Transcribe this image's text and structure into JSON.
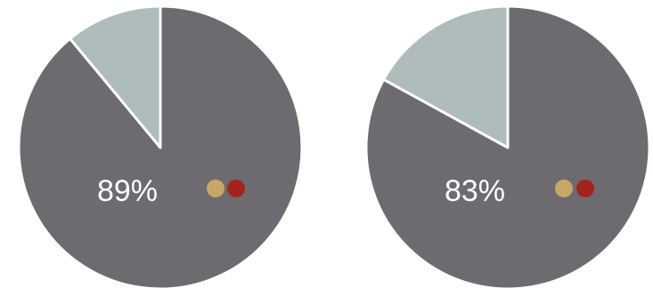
{
  "chart_data": [
    {
      "type": "pie",
      "slices": [
        {
          "value": 89,
          "color": "#6d6b70"
        },
        {
          "value": 11,
          "color": "#aebcbb"
        }
      ],
      "label": "89%",
      "legend_dots": [
        {
          "color": "#c6a866"
        },
        {
          "color": "#a4231d"
        }
      ]
    },
    {
      "type": "pie",
      "slices": [
        {
          "value": 83,
          "color": "#6d6b70"
        },
        {
          "value": 17,
          "color": "#aebcbb"
        }
      ],
      "label": "83%",
      "legend_dots": [
        {
          "color": "#c6a866"
        },
        {
          "color": "#a4231d"
        }
      ]
    }
  ]
}
